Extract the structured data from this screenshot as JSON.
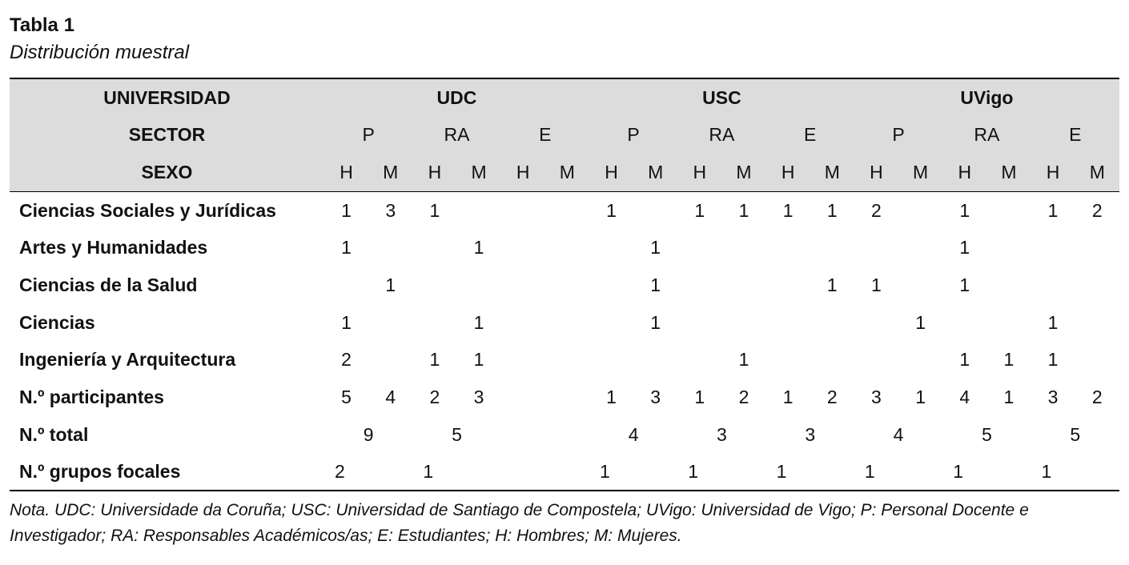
{
  "title": "Tabla 1",
  "subtitle": "Distribución muestral",
  "table": {
    "header": [
      {
        "label": "UNIVERSIDAD",
        "cells": [
          "UDC",
          "USC",
          "UVigo"
        ]
      },
      {
        "label": "SECTOR",
        "cells": [
          "P",
          "RA",
          "E",
          "P",
          "RA",
          "E",
          "P",
          "RA",
          "E"
        ]
      },
      {
        "label": "SEXO",
        "cells": [
          "H",
          "M",
          "H",
          "M",
          "H",
          "M",
          "H",
          "M",
          "H",
          "M",
          "H",
          "M",
          "H",
          "M",
          "H",
          "M",
          "H",
          "M"
        ]
      }
    ],
    "rows": [
      {
        "label": "Ciencias Sociales y Jurídicas",
        "cells": [
          1,
          3,
          1,
          null,
          null,
          null,
          1,
          null,
          1,
          1,
          1,
          1,
          2,
          null,
          1,
          null,
          1,
          2
        ]
      },
      {
        "label": "Artes y Humanidades",
        "cells": [
          1,
          null,
          null,
          1,
          null,
          null,
          null,
          1,
          null,
          null,
          null,
          null,
          null,
          null,
          1,
          null,
          null,
          null
        ]
      },
      {
        "label": "Ciencias de la Salud",
        "cells": [
          null,
          1,
          null,
          null,
          null,
          null,
          null,
          1,
          null,
          null,
          null,
          1,
          1,
          null,
          1,
          null,
          null,
          null
        ]
      },
      {
        "label": "Ciencias",
        "cells": [
          1,
          null,
          null,
          1,
          null,
          null,
          null,
          1,
          null,
          null,
          null,
          null,
          null,
          1,
          null,
          null,
          1,
          null
        ]
      },
      {
        "label": "Ingeniería y Arquitectura",
        "cells": [
          2,
          null,
          1,
          1,
          null,
          null,
          null,
          null,
          null,
          1,
          null,
          null,
          null,
          null,
          1,
          1,
          1,
          null
        ]
      },
      {
        "label": "N.º participantes",
        "cells": [
          5,
          4,
          2,
          3,
          null,
          null,
          1,
          3,
          1,
          2,
          1,
          2,
          3,
          1,
          4,
          1,
          3,
          2
        ]
      },
      {
        "label": "N.º total",
        "cells": [
          9,
          5,
          null,
          4,
          3,
          3,
          4,
          5,
          5
        ]
      },
      {
        "label": "N.º grupos focales",
        "cells": [
          2,
          1,
          null,
          1,
          1,
          1,
          1,
          1,
          1
        ]
      }
    ]
  },
  "note": "Nota. UDC: Universidade da Coruña; USC: Universidad de Santiago de Compostela; UVigo: Universidad de Vigo; P: Personal Docente e Investigador; RA: Responsables Académicos/as; E: Estudiantes; H: Hombres; M: Mujeres."
}
